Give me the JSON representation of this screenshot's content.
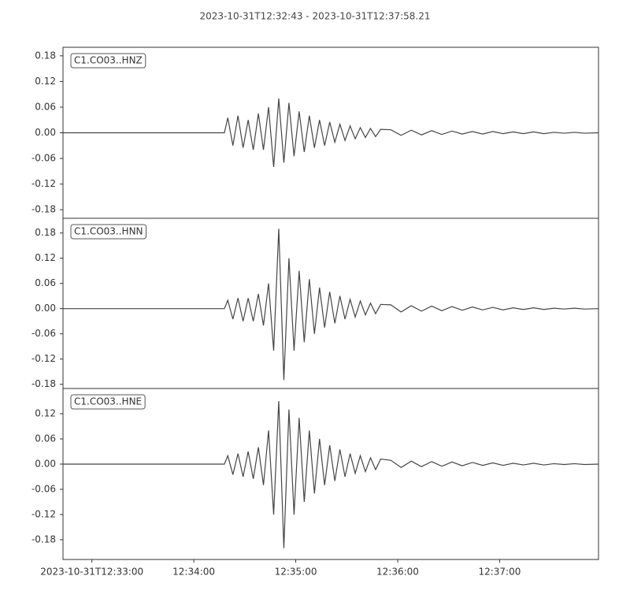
{
  "title": "2023-10-31T12:32:43  -  2023-10-31T12:37:58.21",
  "chart_data": [
    {
      "type": "line",
      "label": "C1.CO03..HNZ",
      "color": "#454545",
      "xlim": [
        "2023-10-31T12:32:43",
        "2023-10-31T12:37:58.21"
      ],
      "ylim": [
        -0.2,
        0.2
      ],
      "yticks": [
        0.18,
        0.12,
        0.06,
        {
          "value": 0,
          "label": "0.00"
        },
        -0.06,
        -0.12,
        -0.18
      ],
      "x": [
        "2023-10-31T12:32:43",
        "2023-10-31T12:34:18",
        "2023-10-31T12:34:20",
        "2023-10-31T12:34:23",
        "2023-10-31T12:34:26",
        "2023-10-31T12:34:29",
        "2023-10-31T12:34:32",
        "2023-10-31T12:34:35",
        "2023-10-31T12:34:38",
        "2023-10-31T12:34:41",
        "2023-10-31T12:34:44",
        "2023-10-31T12:34:47",
        "2023-10-31T12:34:50",
        "2023-10-31T12:34:53",
        "2023-10-31T12:34:56",
        "2023-10-31T12:34:59",
        "2023-10-31T12:35:02",
        "2023-10-31T12:35:05",
        "2023-10-31T12:35:08",
        "2023-10-31T12:35:11",
        "2023-10-31T12:35:14",
        "2023-10-31T12:35:17",
        "2023-10-31T12:35:20",
        "2023-10-31T12:35:23",
        "2023-10-31T12:35:26",
        "2023-10-31T12:35:29",
        "2023-10-31T12:35:32",
        "2023-10-31T12:35:35",
        "2023-10-31T12:35:38",
        "2023-10-31T12:35:41",
        "2023-10-31T12:35:44",
        "2023-10-31T12:35:47",
        "2023-10-31T12:35:50",
        "2023-10-31T12:35:56",
        "2023-10-31T12:36:02",
        "2023-10-31T12:36:08",
        "2023-10-31T12:36:14",
        "2023-10-31T12:36:20",
        "2023-10-31T12:36:26",
        "2023-10-31T12:36:32",
        "2023-10-31T12:36:38",
        "2023-10-31T12:36:44",
        "2023-10-31T12:36:50",
        "2023-10-31T12:36:56",
        "2023-10-31T12:37:02",
        "2023-10-31T12:37:08",
        "2023-10-31T12:37:14",
        "2023-10-31T12:37:20",
        "2023-10-31T12:37:26",
        "2023-10-31T12:37:32",
        "2023-10-31T12:37:38",
        "2023-10-31T12:37:44",
        "2023-10-31T12:37:50",
        "2023-10-31T12:37:58.21"
      ],
      "values": [
        0,
        0,
        0.035,
        -0.03,
        0.04,
        -0.035,
        0.03,
        -0.04,
        0.045,
        -0.04,
        0.06,
        -0.08,
        0.08,
        -0.07,
        0.07,
        -0.055,
        0.05,
        -0.045,
        0.04,
        -0.035,
        0.03,
        -0.03,
        0.025,
        -0.022,
        0.02,
        -0.018,
        0.016,
        -0.014,
        0.012,
        -0.011,
        0.01,
        -0.009,
        0.008,
        0.007,
        -0.006,
        0.006,
        -0.005,
        0.005,
        -0.004,
        0.004,
        -0.003,
        0.003,
        -0.003,
        0.003,
        -0.002,
        0.002,
        -0.002,
        0.002,
        -0.002,
        0.001,
        -0.001,
        0.001,
        -0.001,
        0
      ]
    },
    {
      "type": "line",
      "label": "C1.CO03..HNN",
      "color": "#454545",
      "xlim": [
        "2023-10-31T12:32:43",
        "2023-10-31T12:37:58.21"
      ],
      "ylim": [
        -0.19,
        0.215
      ],
      "yticks": [
        0.18,
        0.12,
        0.06,
        {
          "value": 0,
          "label": "0.00"
        },
        -0.06,
        -0.12,
        -0.18
      ],
      "x": [
        "2023-10-31T12:32:43",
        "2023-10-31T12:34:18",
        "2023-10-31T12:34:20",
        "2023-10-31T12:34:23",
        "2023-10-31T12:34:26",
        "2023-10-31T12:34:29",
        "2023-10-31T12:34:32",
        "2023-10-31T12:34:35",
        "2023-10-31T12:34:38",
        "2023-10-31T12:34:41",
        "2023-10-31T12:34:44",
        "2023-10-31T12:34:47",
        "2023-10-31T12:34:50",
        "2023-10-31T12:34:53",
        "2023-10-31T12:34:56",
        "2023-10-31T12:34:59",
        "2023-10-31T12:35:02",
        "2023-10-31T12:35:05",
        "2023-10-31T12:35:08",
        "2023-10-31T12:35:11",
        "2023-10-31T12:35:14",
        "2023-10-31T12:35:17",
        "2023-10-31T12:35:20",
        "2023-10-31T12:35:23",
        "2023-10-31T12:35:26",
        "2023-10-31T12:35:29",
        "2023-10-31T12:35:32",
        "2023-10-31T12:35:35",
        "2023-10-31T12:35:38",
        "2023-10-31T12:35:41",
        "2023-10-31T12:35:44",
        "2023-10-31T12:35:47",
        "2023-10-31T12:35:50",
        "2023-10-31T12:35:56",
        "2023-10-31T12:36:02",
        "2023-10-31T12:36:08",
        "2023-10-31T12:36:14",
        "2023-10-31T12:36:20",
        "2023-10-31T12:36:26",
        "2023-10-31T12:36:32",
        "2023-10-31T12:36:38",
        "2023-10-31T12:36:44",
        "2023-10-31T12:36:50",
        "2023-10-31T12:36:56",
        "2023-10-31T12:37:02",
        "2023-10-31T12:37:08",
        "2023-10-31T12:37:14",
        "2023-10-31T12:37:20",
        "2023-10-31T12:37:26",
        "2023-10-31T12:37:32",
        "2023-10-31T12:37:38",
        "2023-10-31T12:37:44",
        "2023-10-31T12:37:50",
        "2023-10-31T12:37:58.21"
      ],
      "values": [
        0,
        0,
        0.02,
        -0.025,
        0.025,
        -0.03,
        0.025,
        -0.03,
        0.035,
        -0.04,
        0.06,
        -0.1,
        0.19,
        -0.17,
        0.12,
        -0.1,
        0.09,
        -0.08,
        0.07,
        -0.06,
        0.05,
        -0.045,
        0.04,
        -0.035,
        0.03,
        -0.025,
        0.022,
        -0.02,
        0.018,
        -0.015,
        0.013,
        -0.012,
        0.01,
        0.009,
        -0.008,
        0.007,
        -0.006,
        0.006,
        -0.005,
        0.005,
        -0.004,
        0.004,
        -0.003,
        0.003,
        -0.003,
        0.002,
        -0.002,
        0.002,
        -0.002,
        0.001,
        -0.001,
        0.001,
        -0.001,
        0
      ]
    },
    {
      "type": "line",
      "label": "C1.CO03..HNE",
      "color": "#454545",
      "xlim": [
        "2023-10-31T12:32:43",
        "2023-10-31T12:37:58.21"
      ],
      "ylim": [
        -0.227,
        0.18
      ],
      "yticks": [
        0.12,
        0.06,
        {
          "value": 0,
          "label": "0.00"
        },
        -0.06,
        -0.12,
        -0.18
      ],
      "xticks": [
        {
          "value": "2023-10-31T12:33:00",
          "label": "2023-10-31T12:33:00"
        },
        {
          "value": "2023-10-31T12:34:00",
          "label": "12:34:00"
        },
        {
          "value": "2023-10-31T12:35:00",
          "label": "12:35:00"
        },
        {
          "value": "2023-10-31T12:36:00",
          "label": "12:36:00"
        },
        {
          "value": "2023-10-31T12:37:00",
          "label": "12:37:00"
        }
      ],
      "x": [
        "2023-10-31T12:32:43",
        "2023-10-31T12:34:18",
        "2023-10-31T12:34:20",
        "2023-10-31T12:34:23",
        "2023-10-31T12:34:26",
        "2023-10-31T12:34:29",
        "2023-10-31T12:34:32",
        "2023-10-31T12:34:35",
        "2023-10-31T12:34:38",
        "2023-10-31T12:34:41",
        "2023-10-31T12:34:44",
        "2023-10-31T12:34:47",
        "2023-10-31T12:34:50",
        "2023-10-31T12:34:53",
        "2023-10-31T12:34:56",
        "2023-10-31T12:34:59",
        "2023-10-31T12:35:02",
        "2023-10-31T12:35:05",
        "2023-10-31T12:35:08",
        "2023-10-31T12:35:11",
        "2023-10-31T12:35:14",
        "2023-10-31T12:35:17",
        "2023-10-31T12:35:20",
        "2023-10-31T12:35:23",
        "2023-10-31T12:35:26",
        "2023-10-31T12:35:29",
        "2023-10-31T12:35:32",
        "2023-10-31T12:35:35",
        "2023-10-31T12:35:38",
        "2023-10-31T12:35:41",
        "2023-10-31T12:35:44",
        "2023-10-31T12:35:47",
        "2023-10-31T12:35:50",
        "2023-10-31T12:35:56",
        "2023-10-31T12:36:02",
        "2023-10-31T12:36:08",
        "2023-10-31T12:36:14",
        "2023-10-31T12:36:20",
        "2023-10-31T12:36:26",
        "2023-10-31T12:36:32",
        "2023-10-31T12:36:38",
        "2023-10-31T12:36:44",
        "2023-10-31T12:36:50",
        "2023-10-31T12:36:56",
        "2023-10-31T12:37:02",
        "2023-10-31T12:37:08",
        "2023-10-31T12:37:14",
        "2023-10-31T12:37:20",
        "2023-10-31T12:37:26",
        "2023-10-31T12:37:32",
        "2023-10-31T12:37:38",
        "2023-10-31T12:37:44",
        "2023-10-31T12:37:50",
        "2023-10-31T12:37:58.21"
      ],
      "values": [
        0,
        0,
        0.02,
        -0.025,
        0.025,
        -0.03,
        0.03,
        -0.035,
        0.04,
        -0.05,
        0.08,
        -0.12,
        0.15,
        -0.2,
        0.13,
        -0.12,
        0.11,
        -0.09,
        0.08,
        -0.07,
        0.06,
        -0.05,
        0.045,
        -0.04,
        0.035,
        -0.03,
        0.025,
        -0.022,
        0.02,
        -0.018,
        0.015,
        -0.013,
        0.012,
        0.009,
        -0.008,
        0.007,
        -0.006,
        0.006,
        -0.005,
        0.005,
        -0.004,
        0.004,
        -0.003,
        0.003,
        -0.003,
        0.002,
        -0.002,
        0.002,
        -0.002,
        0.001,
        -0.001,
        0.001,
        -0.001,
        0
      ]
    }
  ]
}
